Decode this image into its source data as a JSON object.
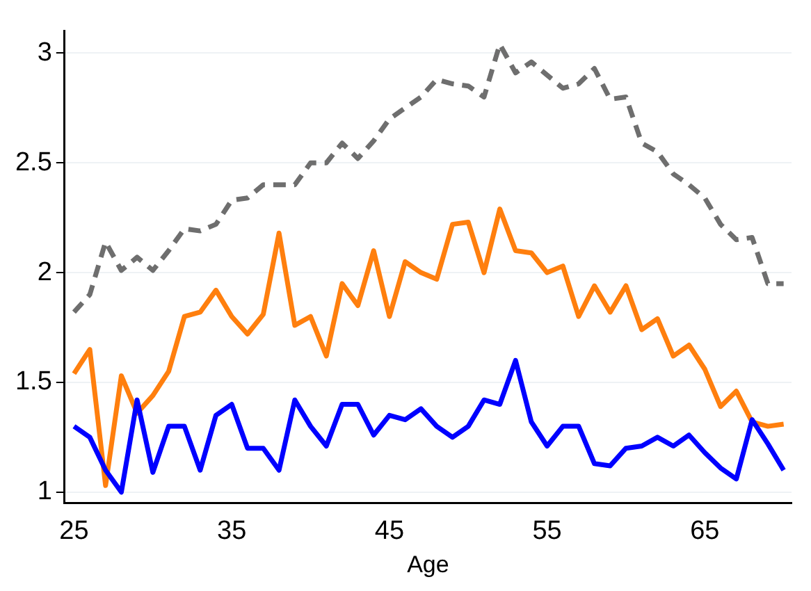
{
  "chart_data": {
    "type": "line",
    "xlabel": "Age",
    "x": [
      25,
      26,
      27,
      28,
      29,
      30,
      31,
      32,
      33,
      34,
      35,
      36,
      37,
      38,
      39,
      40,
      41,
      42,
      43,
      44,
      45,
      46,
      47,
      48,
      49,
      50,
      51,
      52,
      53,
      54,
      55,
      56,
      57,
      58,
      59,
      60,
      61,
      62,
      63,
      64,
      65,
      66,
      67,
      68,
      69,
      70
    ],
    "series": [
      {
        "color": "#0000ff",
        "line_style": "solid",
        "values": [
          1.3,
          1.25,
          1.1,
          1.0,
          1.42,
          1.09,
          1.3,
          1.3,
          1.1,
          1.35,
          1.4,
          1.2,
          1.2,
          1.1,
          1.42,
          1.3,
          1.21,
          1.4,
          1.4,
          1.26,
          1.35,
          1.33,
          1.38,
          1.3,
          1.25,
          1.3,
          1.42,
          1.4,
          1.6,
          1.32,
          1.21,
          1.3,
          1.3,
          1.13,
          1.12,
          1.2,
          1.21,
          1.25,
          1.21,
          1.26,
          1.18,
          1.11,
          1.06,
          1.33,
          1.22,
          1.1
        ]
      },
      {
        "color": "#ff7f0e",
        "line_style": "solid",
        "values": [
          1.54,
          1.65,
          1.03,
          1.53,
          1.36,
          1.44,
          1.55,
          1.8,
          1.82,
          1.92,
          1.8,
          1.72,
          1.81,
          2.18,
          1.76,
          1.8,
          1.62,
          1.95,
          1.85,
          2.1,
          1.8,
          2.05,
          2.0,
          1.97,
          2.22,
          2.23,
          2.0,
          2.29,
          2.1,
          2.09,
          2.0,
          2.03,
          1.8,
          1.94,
          1.82,
          1.94,
          1.74,
          1.79,
          1.62,
          1.67,
          1.56,
          1.39,
          1.46,
          1.32,
          1.3,
          1.31
        ]
      },
      {
        "color": "#6e6e6e",
        "line_style": "dashed",
        "values": [
          1.82,
          1.9,
          2.14,
          2.01,
          2.07,
          2.01,
          2.1,
          2.2,
          2.19,
          2.22,
          2.33,
          2.34,
          2.4,
          2.4,
          2.4,
          2.5,
          2.5,
          2.59,
          2.52,
          2.6,
          2.7,
          2.75,
          2.8,
          2.88,
          2.86,
          2.85,
          2.8,
          3.04,
          2.91,
          2.96,
          2.9,
          2.84,
          2.86,
          2.93,
          2.79,
          2.8,
          2.59,
          2.55,
          2.45,
          2.4,
          2.34,
          2.22,
          2.15,
          2.16,
          1.95,
          1.95
        ]
      }
    ],
    "xlim": [
      24.4,
      70.5
    ],
    "xticks": [
      25,
      35,
      45,
      55,
      65
    ],
    "ylim": [
      0.95,
      3.1
    ],
    "yticks": [
      1,
      1.5,
      2,
      2.5,
      3
    ],
    "grid": "y",
    "legend": false,
    "marker": "none"
  }
}
